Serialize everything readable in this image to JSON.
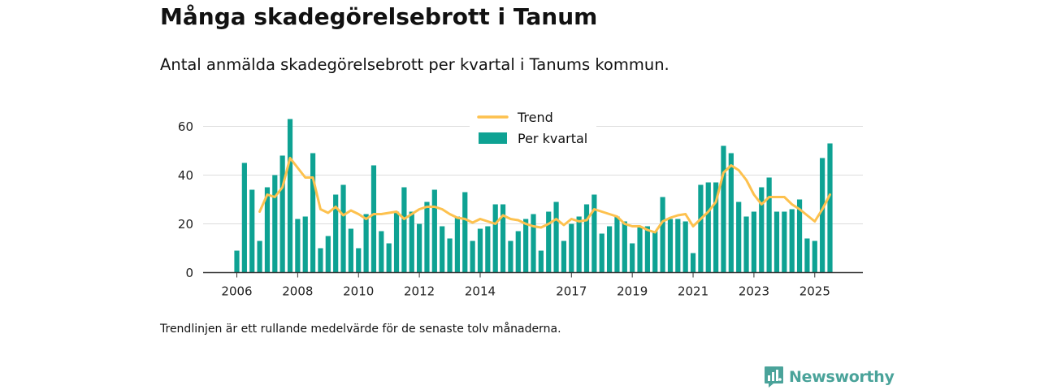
{
  "title": "Många skadegörelsebrott i Tanum",
  "subtitle": "Antal anmälda skadegörelsebrott per kvartal i Tanums kommun.",
  "note": "Trendlinjen är ett rullande medelvärde för de senaste tolv månaderna.",
  "brand": {
    "name": "Newsworthy",
    "icon": "newsworthy-logo-icon"
  },
  "colors": {
    "bars": "#0ea293",
    "trend": "#fdc14e",
    "grid": "#dddddd",
    "axis": "#333333"
  },
  "chart_data": {
    "type": "bar",
    "title": "Många skadegörelsebrott i Tanum",
    "xlabel": "",
    "ylabel": "",
    "ylim": [
      0,
      65
    ],
    "yticks": [
      0,
      20,
      40,
      60
    ],
    "xticks": [
      "2006",
      "2008",
      "2010",
      "2012",
      "2014",
      "2017",
      "2019",
      "2021",
      "2023",
      "2025"
    ],
    "legend": {
      "position": "top-center",
      "entries": [
        "Trend",
        "Per kvartal"
      ]
    },
    "categories": [
      "2006 Q1",
      "2006 Q2",
      "2006 Q3",
      "2006 Q4",
      "2007 Q1",
      "2007 Q2",
      "2007 Q3",
      "2007 Q4",
      "2008 Q1",
      "2008 Q2",
      "2008 Q3",
      "2008 Q4",
      "2009 Q1",
      "2009 Q2",
      "2009 Q3",
      "2009 Q4",
      "2010 Q1",
      "2010 Q2",
      "2010 Q3",
      "2010 Q4",
      "2011 Q1",
      "2011 Q2",
      "2011 Q3",
      "2011 Q4",
      "2012 Q1",
      "2012 Q2",
      "2012 Q3",
      "2012 Q4",
      "2013 Q1",
      "2013 Q2",
      "2013 Q3",
      "2013 Q4",
      "2014 Q1",
      "2014 Q2",
      "2014 Q3",
      "2014 Q4",
      "2015 Q1",
      "2015 Q2",
      "2015 Q3",
      "2015 Q4",
      "2016 Q1",
      "2016 Q2",
      "2016 Q3",
      "2016 Q4",
      "2017 Q1",
      "2017 Q2",
      "2017 Q3",
      "2017 Q4",
      "2018 Q1",
      "2018 Q2",
      "2018 Q3",
      "2018 Q4",
      "2019 Q1",
      "2019 Q2",
      "2019 Q3",
      "2019 Q4",
      "2020 Q1",
      "2020 Q2",
      "2020 Q3",
      "2020 Q4",
      "2021 Q1",
      "2021 Q2",
      "2021 Q3",
      "2021 Q4",
      "2022 Q1",
      "2022 Q2",
      "2022 Q3",
      "2022 Q4",
      "2023 Q1",
      "2023 Q2",
      "2023 Q3",
      "2023 Q4",
      "2024 Q1",
      "2024 Q2",
      "2024 Q3",
      "2024 Q4",
      "2025 Q1",
      "2025 Q2",
      "2025 Q3"
    ],
    "series": [
      {
        "name": "Per kvartal",
        "type": "bar",
        "values": [
          9,
          45,
          34,
          13,
          35,
          40,
          48,
          63,
          22,
          23,
          49,
          10,
          15,
          32,
          36,
          18,
          10,
          24,
          44,
          17,
          12,
          25,
          35,
          25,
          20,
          29,
          34,
          19,
          14,
          23,
          33,
          13,
          18,
          19,
          28,
          28,
          13,
          17,
          22,
          24,
          9,
          25,
          29,
          13,
          20,
          23,
          28,
          32,
          16,
          19,
          23,
          21,
          12,
          19,
          19,
          17,
          31,
          22,
          22,
          21,
          8,
          36,
          37,
          37,
          52,
          49,
          29,
          23,
          25,
          35,
          39,
          25,
          25,
          26,
          30,
          14,
          13,
          47,
          53
        ]
      },
      {
        "name": "Trend",
        "type": "line",
        "values": [
          null,
          null,
          null,
          25,
          32,
          31,
          35,
          47,
          43,
          39,
          39,
          26,
          24.5,
          27,
          23.5,
          25.5,
          24,
          22,
          24,
          24,
          24.5,
          25,
          22,
          24,
          26,
          27,
          27,
          26,
          24,
          22.5,
          22,
          20.5,
          22,
          21,
          20,
          23.5,
          22,
          21.5,
          20,
          19,
          18.5,
          20,
          22,
          19.5,
          22,
          21,
          21.5,
          26,
          25,
          24,
          23,
          20,
          19,
          19,
          17.5,
          16.5,
          21,
          22.5,
          23.5,
          24,
          19,
          22,
          25,
          29,
          41,
          44,
          42,
          38,
          32,
          28,
          31,
          31,
          31,
          28,
          26,
          23.5,
          21,
          26,
          32
        ]
      }
    ]
  }
}
